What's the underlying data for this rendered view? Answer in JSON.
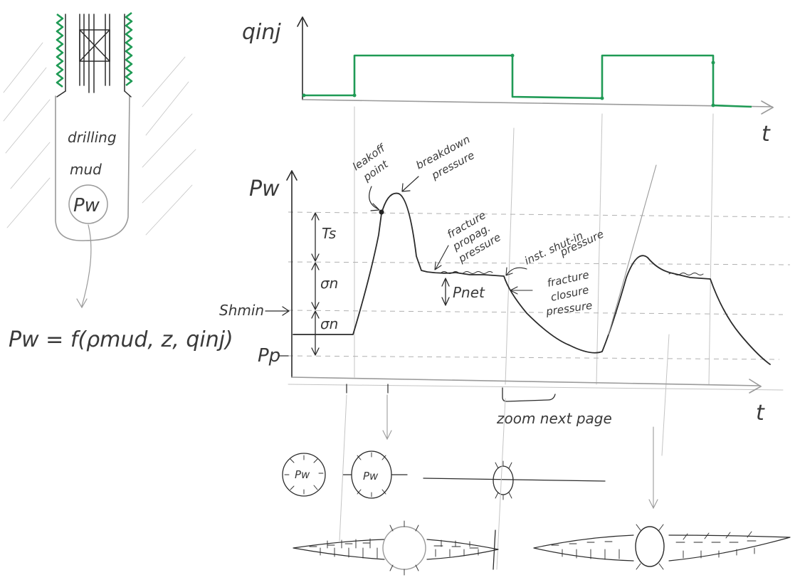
{
  "wellbore": {
    "fill_label_line1": "drilling",
    "fill_label_line2": "mud",
    "pressure_symbol": "Pw",
    "equation": "Pw = f(ρmud, z, qinj)"
  },
  "injection_plot": {
    "y_label": "qinj",
    "x_label": "t",
    "line_color": "#1f9a55"
  },
  "pressure_plot": {
    "y_label": "Pw",
    "x_label": "t",
    "level_labels": {
      "shmin": "Shmin",
      "pore_pressure": "Pp",
      "tensile_strength": "Ts",
      "sigma_upper": "σn",
      "sigma_lower": "σn",
      "net_pressure": "Pnet"
    },
    "annotations": {
      "leakoff_line1": "leakoff",
      "leakoff_line2": "point",
      "breakdown_line1": "breakdown",
      "breakdown_line2": "pressure",
      "propagation_line1": "fracture",
      "propagation_line2": "propag.",
      "propagation_line3": "pressure",
      "shutin_line1": "inst. shut-in",
      "shutin_line2": "pressure",
      "closure_line1": "fracture",
      "closure_line2": "closure",
      "closure_line3": "pressure",
      "zoom_note": "zoom next page"
    }
  },
  "cross_sections": {
    "circle_label": "Pw"
  }
}
